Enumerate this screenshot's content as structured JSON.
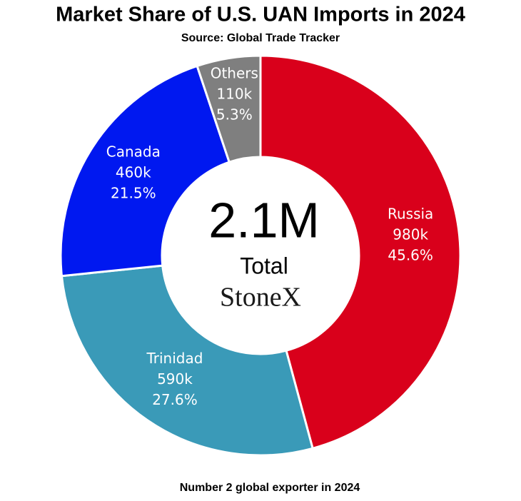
{
  "chart_data": {
    "type": "donut",
    "title": "Market Share of U.S. UAN Imports in 2024",
    "subtitle": "Source: Global Trade Tracker",
    "categories": [
      "Russia",
      "Trinidad",
      "Canada",
      "Others"
    ],
    "values": [
      980000,
      590000,
      460000,
      110000
    ],
    "value_labels": [
      "980k",
      "590k",
      "460k",
      "110k"
    ],
    "percentage_labels": [
      "45.6%",
      "27.6%",
      "21.5%",
      "5.3%"
    ],
    "colors": [
      "#d9001b",
      "#3a9ab8",
      "#0018f0",
      "#7f7f7f"
    ],
    "center_value": "2.1M",
    "center_caption": "Total",
    "logo": "StoneX",
    "footnote": "Number 2 global exporter in 2024"
  }
}
